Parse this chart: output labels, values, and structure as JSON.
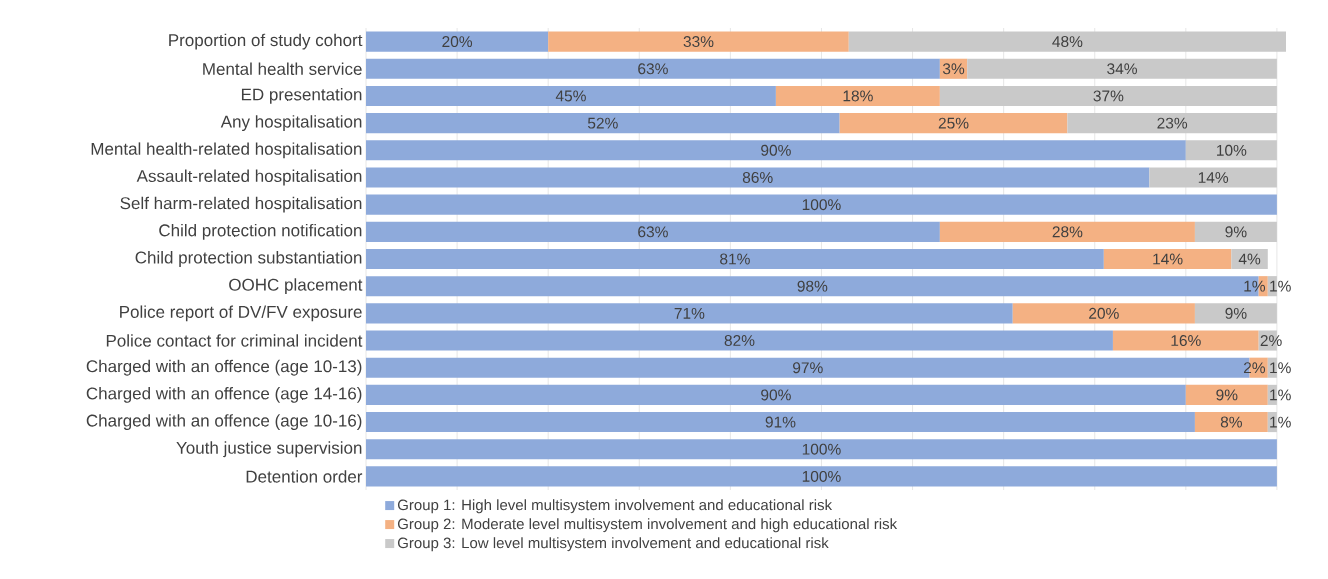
{
  "chart_data": {
    "type": "bar",
    "orientation": "horizontal",
    "stacked": true,
    "categories": [
      "Proportion of study cohort",
      "Mental health service",
      "ED presentation",
      "Any hospitalisation",
      "Mental health-related hospitalisation",
      "Assault-related hospitalisation",
      "Self harm-related hospitalisation",
      "Child protection notification",
      "Child protection substantiation",
      "OOHC placement",
      "Police report of DV/FV exposure",
      "Police contact for criminal incident",
      "Charged with an offence (age 10-13)",
      "Charged with an offence (age 14-16)",
      "Charged with an offence (age 10-16)",
      "Youth justice supervision",
      "Detention order"
    ],
    "series": [
      {
        "name": "Group 1: High level multisystem involvement and educational risk",
        "color": "#8eaadb",
        "values": [
          20,
          63,
          45,
          52,
          90,
          86,
          100,
          63,
          81,
          98,
          71,
          82,
          97,
          90,
          91,
          100,
          100
        ],
        "value_labels": [
          "20%",
          "63%",
          "45%",
          "52%",
          "90%",
          "86%",
          "100%",
          "63%",
          "81%",
          "98%",
          "71%",
          "82%",
          "97%",
          "90%",
          "91%",
          "100%",
          "100%"
        ]
      },
      {
        "name": "Group 2: Moderate level multisystem involvement and high educational risk",
        "color": "#f4b183",
        "values": [
          33,
          3,
          18,
          25,
          null,
          null,
          null,
          28,
          14,
          1,
          20,
          16,
          2,
          9,
          8,
          null,
          null
        ],
        "value_labels": [
          "33%",
          "3%",
          "18%",
          "25%",
          null,
          null,
          null,
          "28%",
          "14%",
          "1%",
          "20%",
          "16%",
          "2%",
          "9%",
          "8%",
          null,
          null
        ]
      },
      {
        "name": "Group 3: Low level multisystem involvement and educational risk",
        "color": "#c9c9c9",
        "values": [
          48,
          34,
          37,
          23,
          10,
          14,
          null,
          9,
          4,
          1,
          9,
          2,
          1,
          1,
          1,
          null,
          null
        ],
        "value_labels": [
          "48%",
          "34%",
          "37%",
          "23%",
          "10%",
          "14%",
          null,
          "9%",
          "4%",
          "1%",
          "9%",
          "2%",
          "1%",
          "1%",
          "1%",
          null,
          null
        ]
      }
    ],
    "xlim": [
      0,
      101
    ],
    "xticks": [
      {
        "value": 0,
        "label": null
      },
      {
        "value": 10,
        "label": null
      },
      {
        "value": 20,
        "label": null
      },
      {
        "value": 30,
        "label": null
      },
      {
        "value": 40,
        "label": null
      },
      {
        "value": 50,
        "label": null
      },
      {
        "value": 60,
        "label": null
      },
      {
        "value": 70,
        "label": null
      },
      {
        "value": 80,
        "label": null
      },
      {
        "value": 90,
        "label": null
      },
      {
        "value": 100,
        "label": null
      }
    ],
    "grid": "x",
    "legend": "bottom",
    "tick_labels": "y"
  }
}
